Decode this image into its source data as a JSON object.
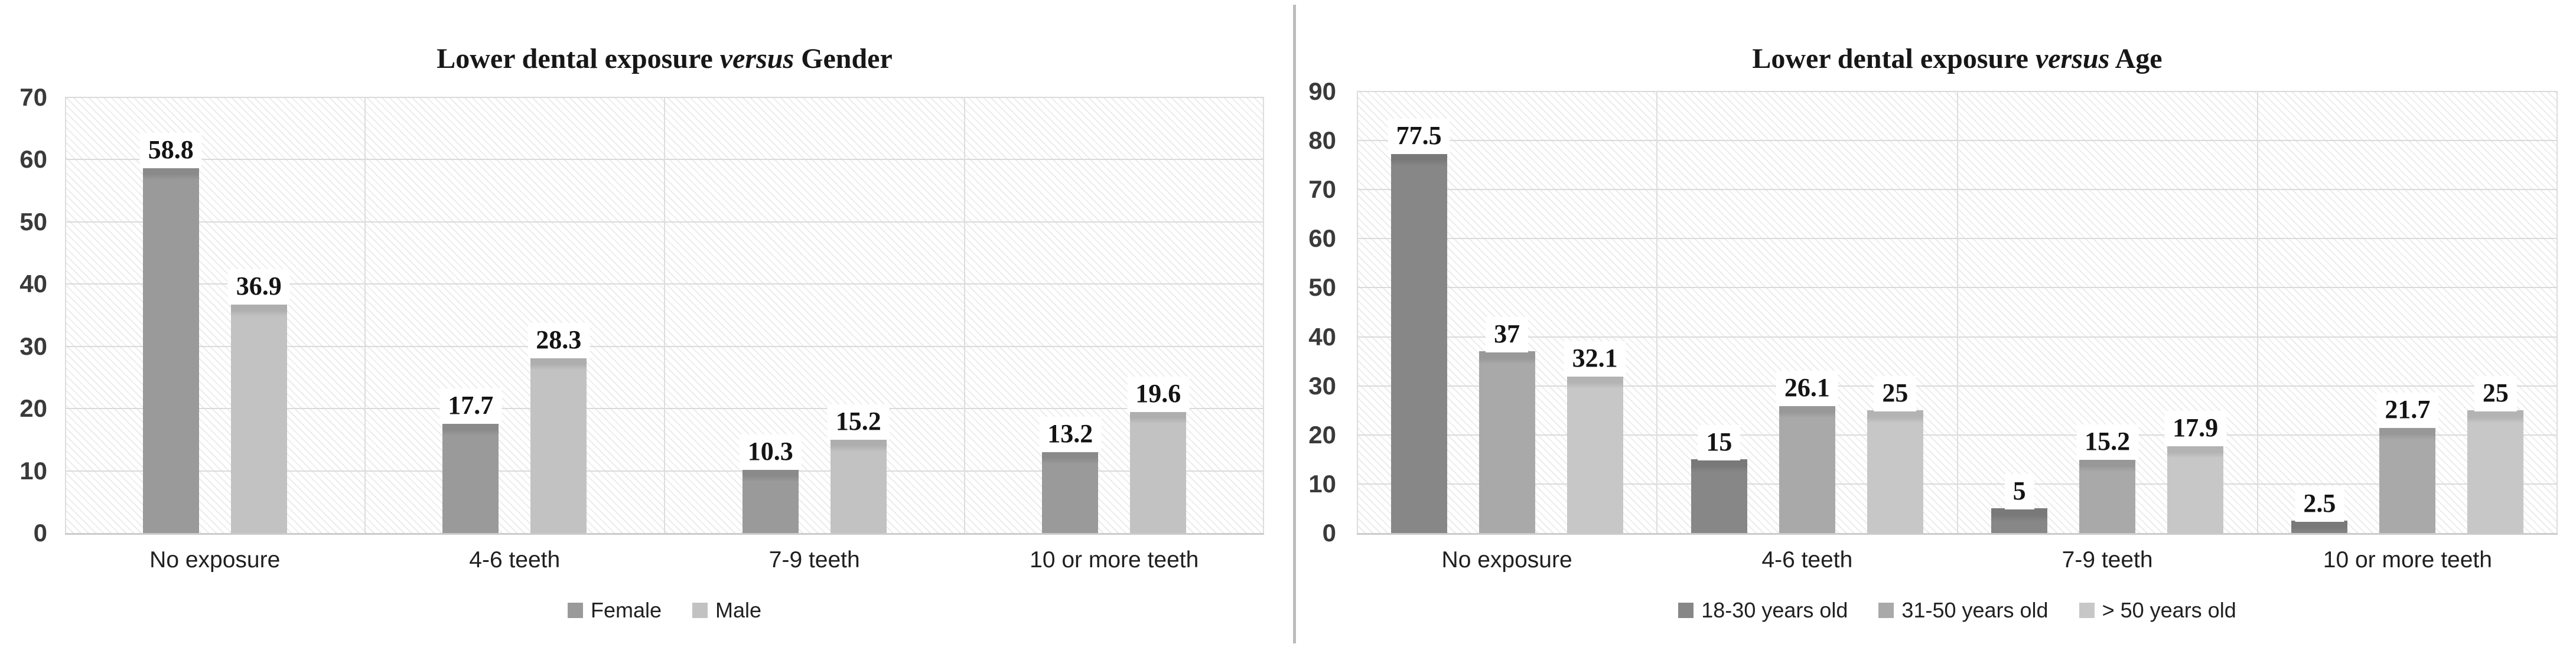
{
  "chart_data": [
    {
      "type": "bar",
      "title": "Lower dental exposure versus Gender",
      "title_parts": {
        "prefix": "Lower dental exposure ",
        "italic": "versus",
        "suffix": " Gender"
      },
      "categories": [
        "No exposure",
        "4-6 teeth",
        "7-9 teeth",
        "10 or more teeth"
      ],
      "series": [
        {
          "name": "Female",
          "color": "#9a9a9a",
          "values": [
            58.8,
            17.7,
            10.3,
            13.2
          ]
        },
        {
          "name": "Male",
          "color": "#c2c2c2",
          "values": [
            36.9,
            28.3,
            15.2,
            19.6
          ]
        }
      ],
      "ylim": [
        0,
        70
      ],
      "ytick_step": 10,
      "grid": true,
      "legend_position": "bottom",
      "plot_background": "diagonal-hatch"
    },
    {
      "type": "bar",
      "title": "Lower dental exposure versus Age",
      "title_parts": {
        "prefix": "Lower dental exposure ",
        "italic": "versus",
        "suffix": " Age"
      },
      "categories": [
        "No exposure",
        "4-6 teeth",
        "7-9 teeth",
        "10 or more teeth"
      ],
      "series": [
        {
          "name": "18-30 years old",
          "color": "#878787",
          "values": [
            77.5,
            15,
            5,
            2.5
          ]
        },
        {
          "name": "31-50 years old",
          "color": "#a9a9a9",
          "values": [
            37,
            26.1,
            15.2,
            21.7
          ]
        },
        {
          "name": "> 50 years old",
          "color": "#c7c7c7",
          "values": [
            32.1,
            25,
            17.9,
            25
          ]
        }
      ],
      "ylim": [
        0,
        90
      ],
      "ytick_step": 10,
      "grid": true,
      "legend_position": "bottom",
      "plot_background": "diagonal-hatch"
    }
  ]
}
